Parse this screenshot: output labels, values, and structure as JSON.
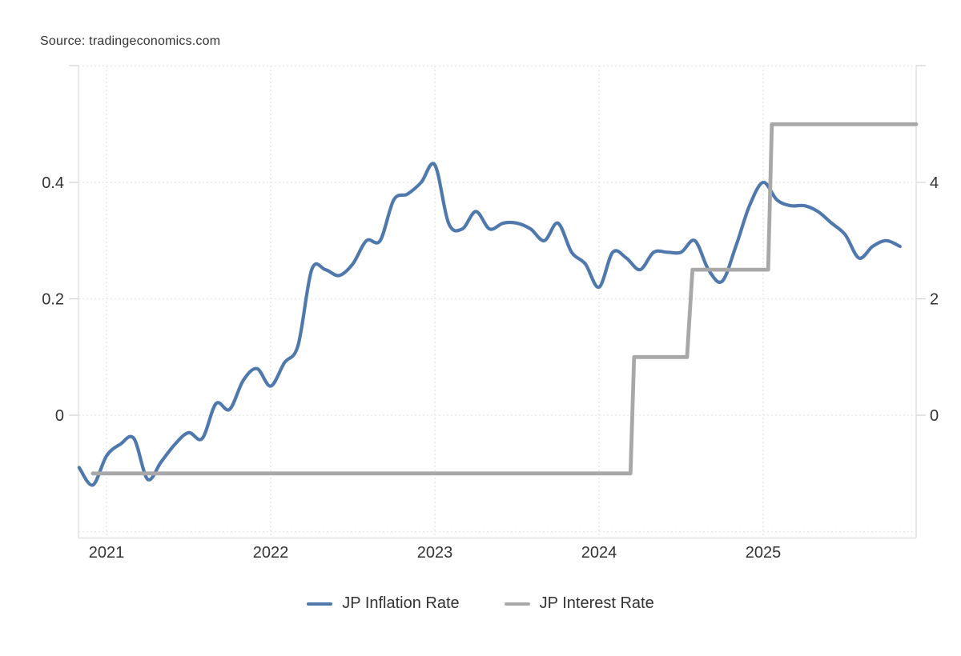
{
  "page": {
    "source_label": "Source: tradingeconomics.com"
  },
  "chart_data": {
    "type": "line",
    "title": "",
    "x_range": {
      "start": "2020-11",
      "end": "2025-12"
    },
    "grid": true,
    "x_ticks": [
      {
        "label": "2021",
        "date": "2021-01"
      },
      {
        "label": "2022",
        "date": "2022-01"
      },
      {
        "label": "2023",
        "date": "2023-01"
      },
      {
        "label": "2024",
        "date": "2024-01"
      },
      {
        "label": "2025",
        "date": "2025-01"
      }
    ],
    "left_axis": {
      "applies_to": "JP Interest Rate",
      "unit": "percent",
      "ticks": [
        {
          "label": "0.4",
          "value": 0.4
        },
        {
          "label": "0.2",
          "value": 0.2
        },
        {
          "label": "0",
          "value": 0
        }
      ]
    },
    "right_axis": {
      "applies_to": "JP Inflation Rate",
      "unit": "percent",
      "ticks": [
        {
          "label": "4",
          "value": 4
        },
        {
          "label": "2",
          "value": 2
        },
        {
          "label": "0",
          "value": 0
        }
      ]
    },
    "series": [
      {
        "name": "JP Inflation Rate",
        "color": "#4f78ad",
        "axis": "right",
        "style": "spline",
        "points": [
          [
            "2020-11",
            -0.9
          ],
          [
            "2020-12",
            -1.2
          ],
          [
            "2021-01",
            -0.7
          ],
          [
            "2021-02",
            -0.5
          ],
          [
            "2021-03",
            -0.4
          ],
          [
            "2021-04",
            -1.1
          ],
          [
            "2021-05",
            -0.8
          ],
          [
            "2021-06",
            -0.5
          ],
          [
            "2021-07",
            -0.3
          ],
          [
            "2021-08",
            -0.4
          ],
          [
            "2021-09",
            0.2
          ],
          [
            "2021-10",
            0.1
          ],
          [
            "2021-11",
            0.6
          ],
          [
            "2021-12",
            0.8
          ],
          [
            "2022-01",
            0.5
          ],
          [
            "2022-02",
            0.9
          ],
          [
            "2022-03",
            1.2
          ],
          [
            "2022-04",
            2.5
          ],
          [
            "2022-05",
            2.5
          ],
          [
            "2022-06",
            2.4
          ],
          [
            "2022-07",
            2.6
          ],
          [
            "2022-08",
            3.0
          ],
          [
            "2022-09",
            3.0
          ],
          [
            "2022-10",
            3.7
          ],
          [
            "2022-11",
            3.8
          ],
          [
            "2022-12",
            4.0
          ],
          [
            "2023-01",
            4.3
          ],
          [
            "2023-02",
            3.3
          ],
          [
            "2023-03",
            3.2
          ],
          [
            "2023-04",
            3.5
          ],
          [
            "2023-05",
            3.2
          ],
          [
            "2023-06",
            3.3
          ],
          [
            "2023-07",
            3.3
          ],
          [
            "2023-08",
            3.2
          ],
          [
            "2023-09",
            3.0
          ],
          [
            "2023-10",
            3.3
          ],
          [
            "2023-11",
            2.8
          ],
          [
            "2023-12",
            2.6
          ],
          [
            "2024-01",
            2.2
          ],
          [
            "2024-02",
            2.8
          ],
          [
            "2024-03",
            2.7
          ],
          [
            "2024-04",
            2.5
          ],
          [
            "2024-05",
            2.8
          ],
          [
            "2024-06",
            2.8
          ],
          [
            "2024-07",
            2.8
          ],
          [
            "2024-08",
            3.0
          ],
          [
            "2024-09",
            2.5
          ],
          [
            "2024-10",
            2.3
          ],
          [
            "2024-11",
            2.9
          ],
          [
            "2024-12",
            3.6
          ],
          [
            "2025-01",
            4.0
          ],
          [
            "2025-02",
            3.7
          ],
          [
            "2025-03",
            3.6
          ],
          [
            "2025-04",
            3.6
          ],
          [
            "2025-05",
            3.5
          ],
          [
            "2025-06",
            3.3
          ],
          [
            "2025-07",
            3.1
          ],
          [
            "2025-08",
            2.7
          ],
          [
            "2025-09",
            2.9
          ],
          [
            "2025-10",
            3.0
          ],
          [
            "2025-11",
            2.9
          ]
        ]
      },
      {
        "name": "JP Interest Rate",
        "color": "#a8a8a8",
        "axis": "left",
        "style": "step",
        "points": [
          [
            "2020-12-01",
            -0.1
          ],
          [
            "2024-03-10",
            -0.1
          ],
          [
            "2024-03-18",
            0.1
          ],
          [
            "2024-07-14",
            0.1
          ],
          [
            "2024-07-26",
            0.25
          ],
          [
            "2025-01-12",
            0.25
          ],
          [
            "2025-01-20",
            0.5
          ],
          [
            "2025-12-01",
            0.5
          ]
        ]
      }
    ],
    "legend": [
      {
        "label": "JP Inflation Rate",
        "color": "#4f78ad"
      },
      {
        "label": "JP Interest Rate",
        "color": "#a8a8a8"
      }
    ],
    "legend_position": "bottom-center"
  }
}
